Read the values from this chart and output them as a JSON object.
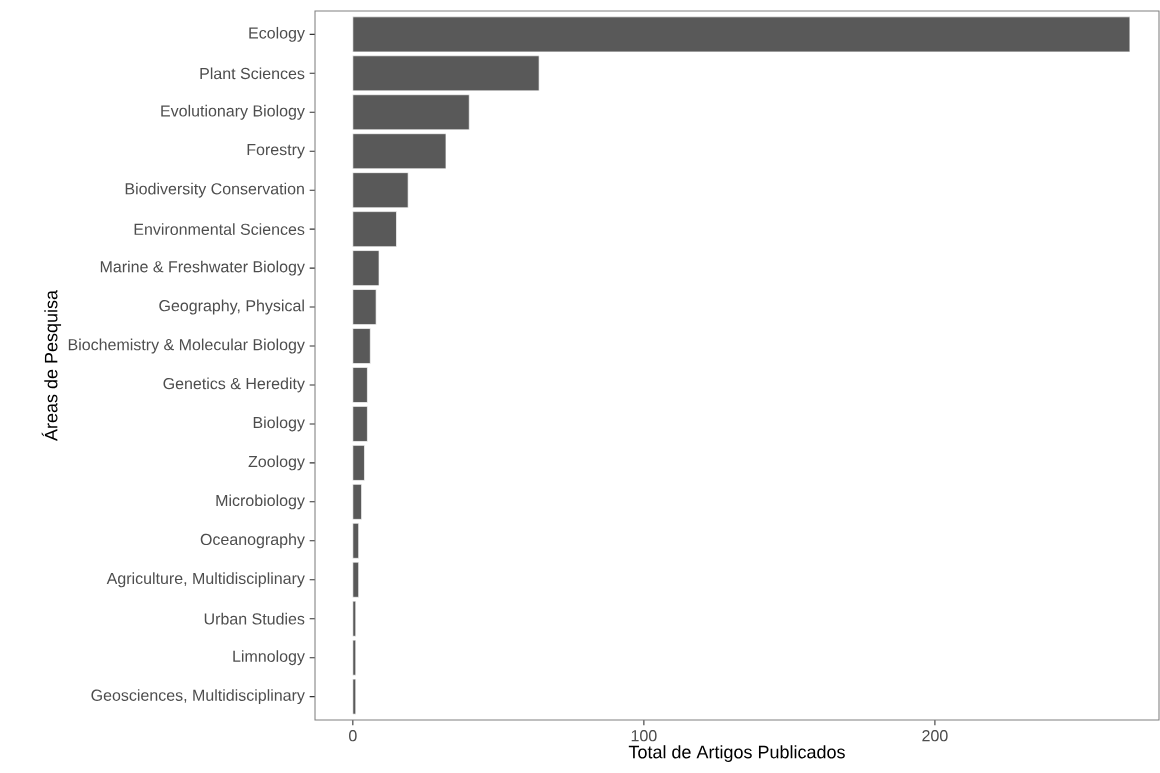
{
  "chart_data": {
    "type": "bar",
    "orientation": "horizontal",
    "xlabel": "Total de Artigos Publicados",
    "ylabel": "Áreas de Pesquisa",
    "categories": [
      "Ecology",
      "Plant Sciences",
      "Evolutionary Biology",
      "Forestry",
      "Biodiversity Conservation",
      "Environmental Sciences",
      "Marine & Freshwater Biology",
      "Geography, Physical",
      "Biochemistry & Molecular Biology",
      "Genetics & Heredity",
      "Biology",
      "Zoology",
      "Microbiology",
      "Oceanography",
      "Agriculture, Multidisciplinary",
      "Urban Studies",
      "Limnology",
      "Geosciences, Multidisciplinary"
    ],
    "values": [
      267,
      64,
      40,
      32,
      19,
      15,
      9,
      8,
      6,
      5,
      5,
      4,
      3,
      2,
      2,
      1,
      1,
      1
    ],
    "color": "#595959",
    "xlim": [
      -13,
      277
    ],
    "xticks": [
      0,
      100,
      200
    ]
  }
}
